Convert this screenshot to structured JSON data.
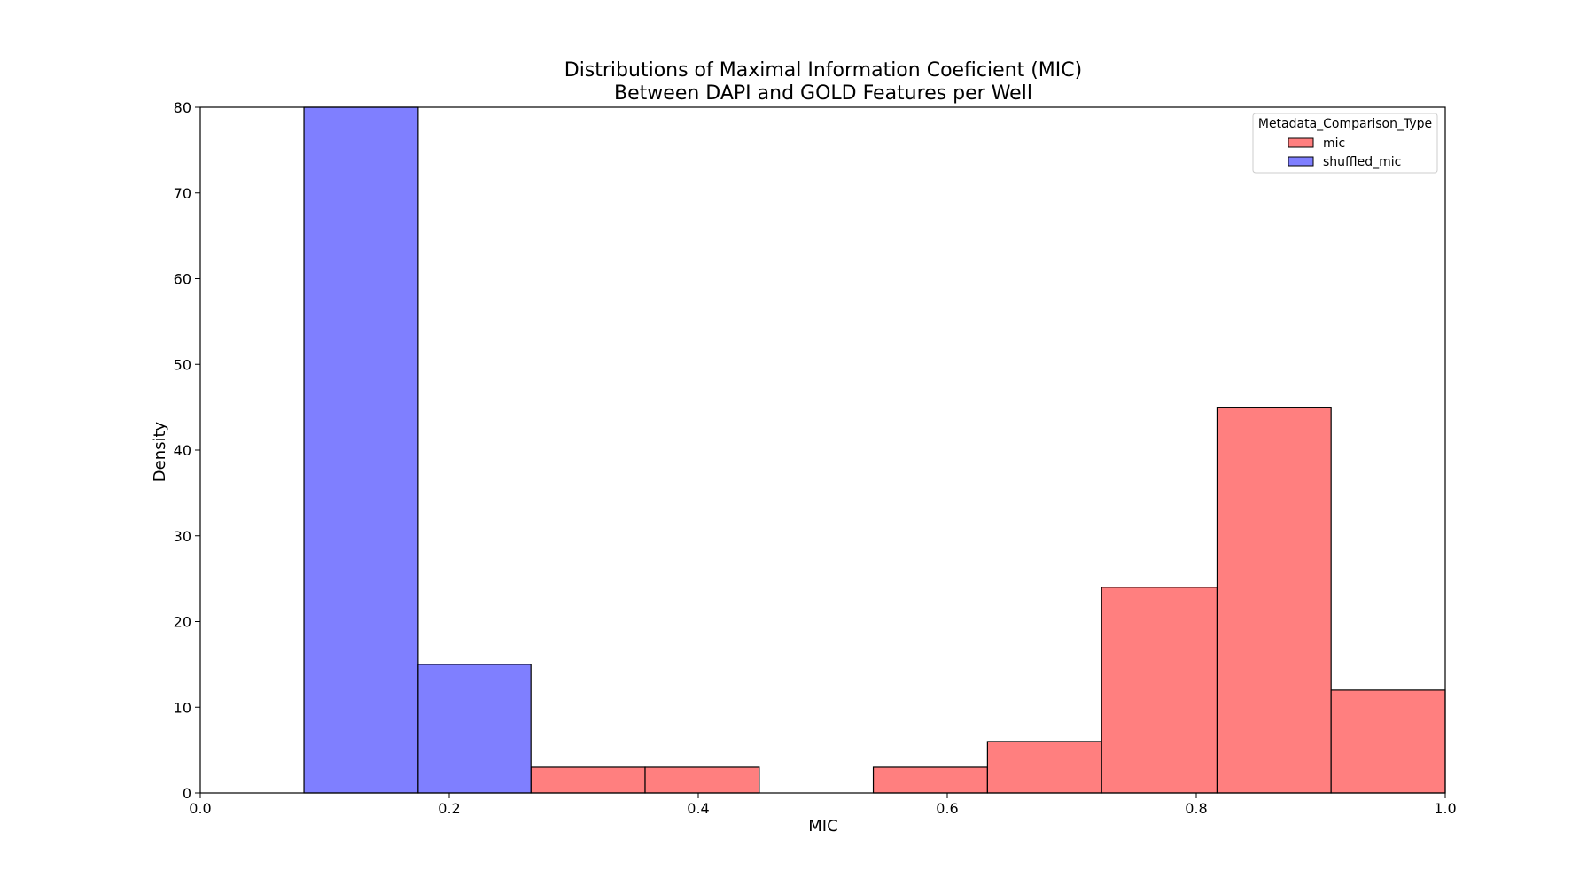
{
  "chart_data": {
    "type": "bar",
    "title": "Distributions of Maximal Information Coeficient (MIC)",
    "subtitle": "Between DAPI and GOLD Features per Well",
    "xlabel": "MIC",
    "ylabel": "Density",
    "xlim": [
      0.0,
      1.0
    ],
    "ylim": [
      0,
      80
    ],
    "x_ticks": [
      "0.0",
      "0.2",
      "0.4",
      "0.6",
      "0.8",
      "1.0"
    ],
    "y_ticks": [
      "0",
      "10",
      "20",
      "30",
      "40",
      "50",
      "60",
      "70",
      "80"
    ],
    "legend": {
      "title": "Metadata_Comparison_Type",
      "placement": "top-right",
      "entries": [
        "mic",
        "shuffled_mic"
      ]
    },
    "series": [
      {
        "name": "mic",
        "color": "#ff7f7f",
        "bins": [
          {
            "x0": 0.2656,
            "x1": 0.3573,
            "value": 3
          },
          {
            "x0": 0.3573,
            "x1": 0.449,
            "value": 3
          },
          {
            "x0": 0.449,
            "x1": 0.5406,
            "value": 0
          },
          {
            "x0": 0.5406,
            "x1": 0.6323,
            "value": 3
          },
          {
            "x0": 0.6323,
            "x1": 0.724,
            "value": 6
          },
          {
            "x0": 0.724,
            "x1": 0.8167,
            "value": 24
          },
          {
            "x0": 0.8167,
            "x1": 0.9083,
            "value": 45
          },
          {
            "x0": 0.9083,
            "x1": 1.0,
            "value": 12
          }
        ]
      },
      {
        "name": "shuffled_mic",
        "color": "#7f7fff",
        "bins": [
          {
            "x0": 0.0833,
            "x1": 0.175,
            "value": 80
          },
          {
            "x0": 0.175,
            "x1": 0.2656,
            "value": 15
          }
        ]
      }
    ]
  }
}
